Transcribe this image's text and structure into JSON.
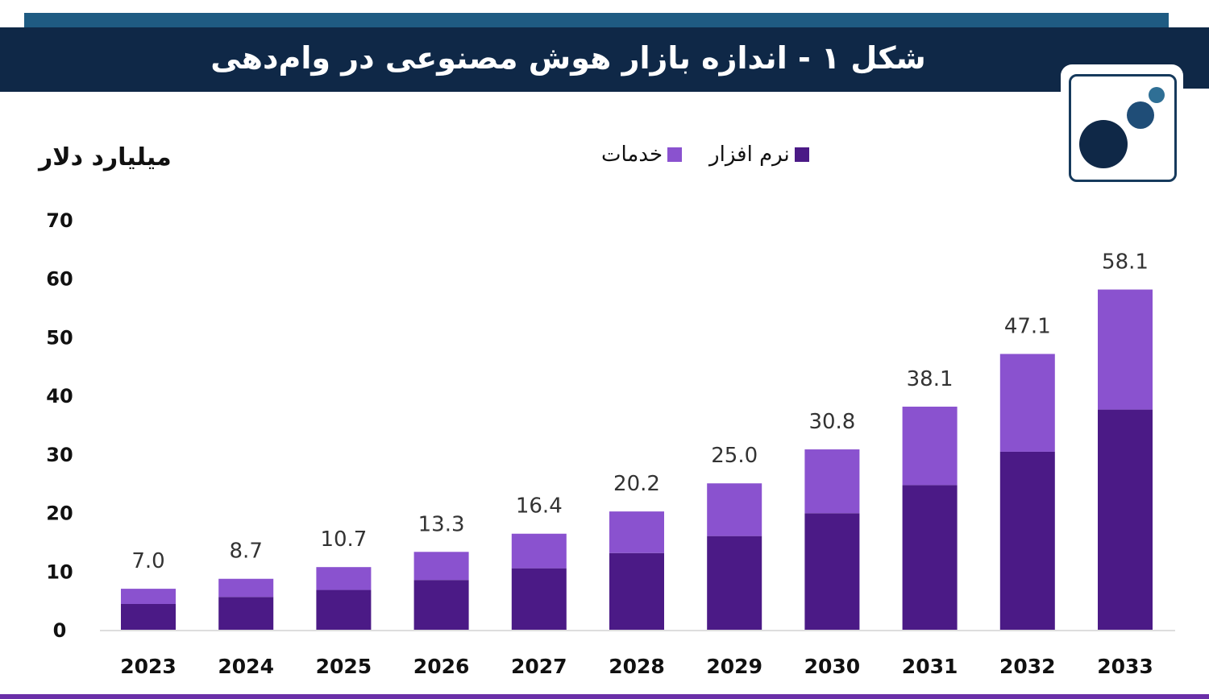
{
  "title": "شکل ۱ - اندازه بازار هوش مصنوعی در وام‌دهی",
  "colors": {
    "banner": "#0f2847",
    "strip": "#1f5b82",
    "software": "#4b1a86",
    "services": "#8a52cf",
    "logo_dark": "#0f2847",
    "logo_mid": "#1f4d77",
    "logo_light": "#2f6f95"
  },
  "logo": {
    "icon": "company-logo-circles-icon"
  },
  "chart_data": {
    "type": "bar",
    "stacked": true,
    "ylabel": "میلیارد دلار",
    "ylim": [
      0,
      70
    ],
    "yticks": [
      0,
      10,
      20,
      30,
      40,
      50,
      60,
      70
    ],
    "grid": false,
    "legend_position": "top-center",
    "categories": [
      "2023",
      "2024",
      "2025",
      "2026",
      "2027",
      "2028",
      "2029",
      "2030",
      "2031",
      "2032",
      "2033"
    ],
    "series": [
      {
        "name": "نرم افزار",
        "color": "#4b1a86",
        "values": [
          4.4,
          5.6,
          6.8,
          8.5,
          10.5,
          13.1,
          16.0,
          19.9,
          24.7,
          30.4,
          37.6
        ]
      },
      {
        "name": "خدمات",
        "color": "#8a52cf",
        "values": [
          2.6,
          3.1,
          3.9,
          4.8,
          5.9,
          7.1,
          9.0,
          10.9,
          13.4,
          16.7,
          20.5
        ]
      }
    ],
    "totals": [
      "7.0",
      "8.7",
      "10.7",
      "13.3",
      "16.4",
      "20.2",
      "25.0",
      "30.8",
      "38.1",
      "47.1",
      "58.1"
    ]
  }
}
